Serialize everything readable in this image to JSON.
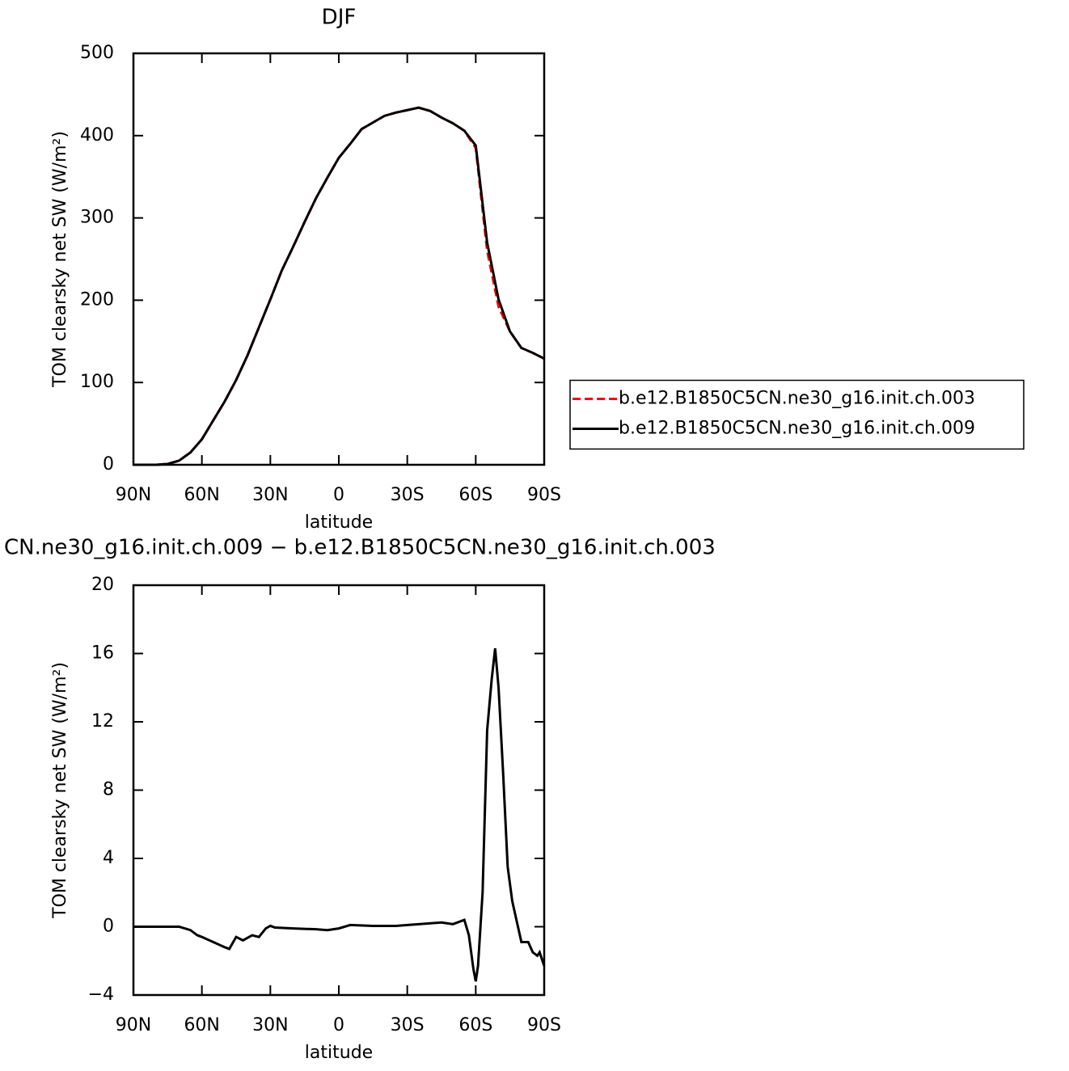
{
  "chart_data": [
    {
      "type": "line",
      "title": "DJF",
      "xlabel": "latitude",
      "ylabel": "TOM clearsky net SW (W/m²)",
      "x": [
        90,
        85,
        80,
        75,
        70,
        65,
        60,
        55,
        50,
        45,
        40,
        35,
        30,
        25,
        20,
        15,
        10,
        5,
        0,
        -5,
        -10,
        -15,
        -20,
        -25,
        -30,
        -35,
        -40,
        -45,
        -50,
        -55,
        -60,
        -65,
        -70,
        -75,
        -80,
        -85,
        -90
      ],
      "series": [
        {
          "name": "b.e12.B1850C5CN.ne30_g16.init.ch.003",
          "color": "#ff0000",
          "dashed": true,
          "values": [
            0,
            0,
            0,
            1,
            5,
            15,
            31,
            54,
            77,
            103,
            133,
            167,
            201,
            236,
            265,
            295,
            324,
            349,
            373,
            390,
            408,
            416,
            424,
            428,
            431,
            434,
            430,
            422,
            415,
            406,
            385,
            260,
            192,
            162,
            142,
            136,
            129
          ]
        },
        {
          "name": "b.e12.B1850C5CN.ne30_g16.init.ch.009",
          "color": "#000000",
          "dashed": false,
          "values": [
            0,
            0,
            0,
            1,
            5,
            15,
            31,
            54,
            77,
            103,
            133,
            167,
            201,
            236,
            265,
            295,
            324,
            349,
            373,
            390,
            408,
            416,
            424,
            428,
            431,
            434,
            430,
            422,
            415,
            406,
            388,
            270,
            201,
            162,
            142,
            136,
            129
          ]
        }
      ],
      "xlim": [
        90,
        -90
      ],
      "xticks": [
        {
          "value": 90,
          "label": "90N"
        },
        {
          "value": 60,
          "label": "60N"
        },
        {
          "value": 30,
          "label": "30N"
        },
        0,
        {
          "value": -30,
          "label": "30S"
        },
        {
          "value": -60,
          "label": "60S"
        },
        {
          "value": -90,
          "label": "90S"
        }
      ],
      "ylim": [
        0,
        500
      ],
      "yticks": [
        0,
        100,
        200,
        300,
        400,
        500
      ],
      "legend": "right"
    },
    {
      "type": "line",
      "title": "CN.ne30_g16.init.ch.009 − b.e12.B1850C5CN.ne30_g16.init.ch.003",
      "xlabel": "latitude",
      "ylabel": "TOM clearsky net SW (W/m²)",
      "x": [
        90,
        80,
        70,
        65,
        62,
        60,
        55,
        50,
        48,
        45,
        42,
        38,
        35,
        32,
        30,
        28,
        20,
        10,
        5,
        0,
        -5,
        -15,
        -25,
        -35,
        -45,
        -50,
        -55,
        -57,
        -59,
        -60,
        -61,
        -63,
        -65,
        -67,
        -68.5,
        -70,
        -72,
        -74,
        -76,
        -78,
        -80,
        -83,
        -85,
        -87,
        -88,
        -90
      ],
      "series": [
        {
          "color": "#000000",
          "dashed": false,
          "values": [
            0,
            0,
            0,
            -0.2,
            -0.5,
            -0.6,
            -0.9,
            -1.2,
            -1.3,
            -0.6,
            -0.8,
            -0.5,
            -0.6,
            -0.1,
            0.05,
            -0.05,
            -0.1,
            -0.15,
            -0.2,
            -0.1,
            0.1,
            0.05,
            0.05,
            0.15,
            0.25,
            0.15,
            0.4,
            -0.5,
            -2.5,
            -3.2,
            -2.3,
            2,
            11.5,
            14.5,
            16.3,
            14,
            9,
            3.5,
            1.5,
            0.3,
            -0.9,
            -0.9,
            -1.5,
            -1.7,
            -1.5,
            -2.3
          ]
        }
      ],
      "xlim": [
        90,
        -90
      ],
      "xticks": [
        {
          "value": 90,
          "label": "90N"
        },
        {
          "value": 60,
          "label": "60N"
        },
        {
          "value": 30,
          "label": "30N"
        },
        0,
        {
          "value": -30,
          "label": "30S"
        },
        {
          "value": -60,
          "label": "60S"
        },
        {
          "value": -90,
          "label": "90S"
        }
      ],
      "ylim": [
        -4,
        20
      ],
      "yticks": [
        {
          "value": -4,
          "label": "−4"
        },
        0,
        4,
        8,
        12,
        16,
        20
      ]
    }
  ]
}
